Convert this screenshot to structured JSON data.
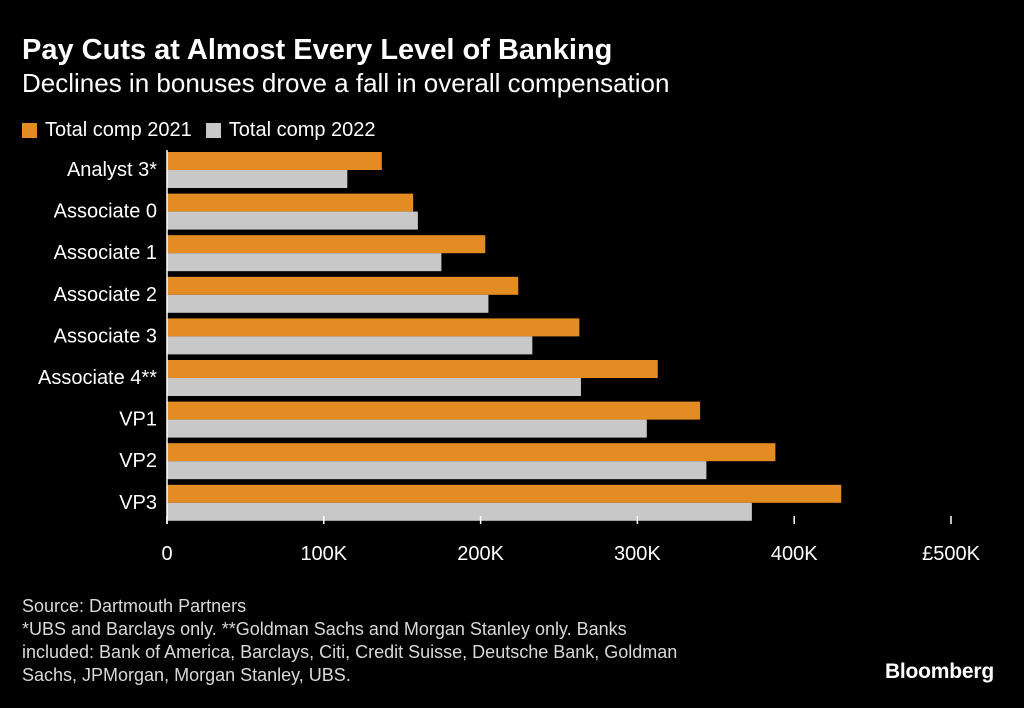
{
  "title": "Pay Cuts at Almost Every Level of Banking",
  "subtitle": "Declines in bonuses drove a fall in overall compensation",
  "legend": {
    "series_2021": "Total comp 2021",
    "series_2022": "Total comp 2022"
  },
  "colors": {
    "series_2021": "#e38c24",
    "series_2022": "#c8c8c8",
    "background": "#000000",
    "axis": "#ffffff",
    "text": "#ffffff"
  },
  "chart_data": {
    "type": "bar",
    "orientation": "horizontal",
    "title": "Pay Cuts at Almost Every Level of Banking",
    "subtitle": "Declines in bonuses drove a fall in overall compensation",
    "categories": [
      "Analyst 3*",
      "Associate 0",
      "Associate 1",
      "Associate 2",
      "Associate 3",
      "Associate 4**",
      "VP1",
      "VP2",
      "VP3"
    ],
    "series": [
      {
        "name": "Total comp 2021",
        "values": [
          137000,
          157000,
          203000,
          224000,
          263000,
          313000,
          340000,
          388000,
          430000
        ]
      },
      {
        "name": "Total comp 2022",
        "values": [
          115000,
          160000,
          175000,
          205000,
          233000,
          264000,
          306000,
          344000,
          373000
        ]
      }
    ],
    "xlim": [
      0,
      500000
    ],
    "xticks": [
      0,
      100000,
      200000,
      300000,
      400000,
      500000
    ],
    "xtick_labels": [
      "0",
      "100K",
      "200K",
      "300K",
      "400K",
      "£500K"
    ],
    "xlabel": "",
    "ylabel": "",
    "legend_position": "top-left"
  },
  "footer": {
    "source": "Source: Dartmouth Partners",
    "note_line1": "*UBS and Barclays only. **Goldman Sachs and Morgan Stanley only. Banks",
    "note_line2": "included: Bank of America, Barclays, Citi, Credit Suisse, Deutsche Bank, Goldman",
    "note_line3": "Sachs, JPMorgan, Morgan Stanley, UBS."
  },
  "brand": "Bloomberg"
}
